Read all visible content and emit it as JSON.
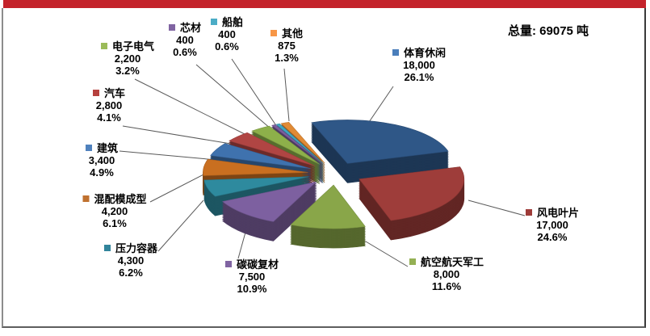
{
  "frame": {
    "top_bar_color": "#C4232B",
    "background": "#FFFFFF",
    "border_left_color": "#8C8C8C",
    "border_right_color": "#3A3A3A",
    "border_bottom_color": "#5E5E5E",
    "leader_line_color": "#595959"
  },
  "chart_data": {
    "type": "pie",
    "style": "3d-exploded",
    "title": "",
    "total": {
      "text": "总量: 69075 吨",
      "value": 69075,
      "unit": "吨"
    },
    "start_angle": "12-oclock, clockwise, rotated",
    "legend_position": "around-slices",
    "slices": [
      {
        "label": "体育休闲",
        "value": 18000,
        "value_label": "18,000",
        "pct": 26.1,
        "pct_label": "26.1%",
        "color": "#2F5787",
        "legend_color": "#4A7EBB"
      },
      {
        "label": "风电叶片",
        "value": 17000,
        "value_label": "17,000",
        "pct": 24.6,
        "pct_label": "24.6%",
        "color": "#9E3D3A",
        "legend_color": "#9E3B38"
      },
      {
        "label": "航空航天军工",
        "value": 8000,
        "value_label": "8,000",
        "pct": 11.6,
        "pct_label": "11.6%",
        "color": "#89A649",
        "legend_color": "#94B054"
      },
      {
        "label": "碳碳复材",
        "value": 7500,
        "value_label": "7,500",
        "pct": 10.9,
        "pct_label": "10.9%",
        "color": "#7D60A0",
        "legend_color": "#8064A2"
      },
      {
        "label": "压力容器",
        "value": 4300,
        "value_label": "4,300",
        "pct": 6.2,
        "pct_label": "6.2%",
        "color": "#2E8A9E",
        "legend_color": "#31849B"
      },
      {
        "label": "混配模成型",
        "value": 4200,
        "value_label": "4,200",
        "pct": 6.1,
        "pct_label": "6.1%",
        "color": "#C96F20",
        "legend_color": "#C0712F"
      },
      {
        "label": "建筑",
        "value": 3400,
        "value_label": "3,400",
        "pct": 4.9,
        "pct_label": "4.9%",
        "color": "#3F72AE",
        "legend_color": "#4F81BD"
      },
      {
        "label": "汽车",
        "value": 2800,
        "value_label": "2,800",
        "pct": 4.1,
        "pct_label": "4.1%",
        "color": "#B04543",
        "legend_color": "#B6413E"
      },
      {
        "label": "电子电气",
        "value": 2200,
        "value_label": "2,200",
        "pct": 3.2,
        "pct_label": "3.2%",
        "color": "#8DB04A",
        "legend_color": "#9BBB59"
      },
      {
        "label": "芯材",
        "value": 400,
        "value_label": "400",
        "pct": 0.6,
        "pct_label": "0.6%",
        "color": "#7B5D9E",
        "legend_color": "#8064A2"
      },
      {
        "label": "船舶",
        "value": 400,
        "value_label": "400",
        "pct": 0.6,
        "pct_label": "0.6%",
        "color": "#3FA5C2",
        "legend_color": "#4BACC6"
      },
      {
        "label": "其他",
        "value": 875,
        "value_label": "875",
        "pct": 1.3,
        "pct_label": "1.3%",
        "color": "#E08A35",
        "legend_color": "#F79646"
      }
    ]
  }
}
